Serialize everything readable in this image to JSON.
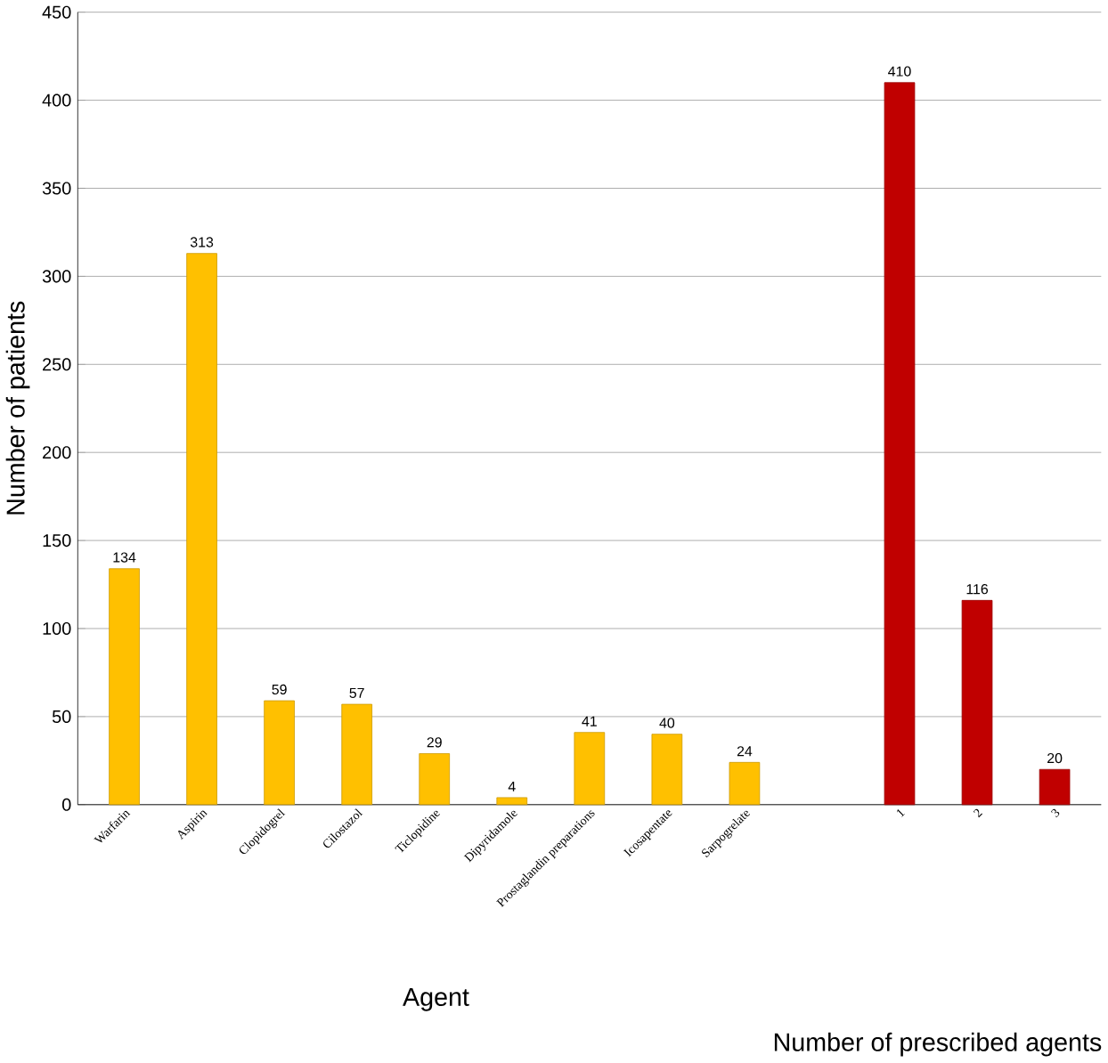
{
  "chart_data": {
    "type": "bar",
    "ylabel": "Number of patients",
    "xlabel": "Agent",
    "categories": [
      "Warfarin",
      "Aspirin",
      "Clopidogrel",
      "Cilostazol",
      "Ticlopidine",
      "Dipyridamole",
      "Prostaglandin preparations",
      "Icosapentate",
      "Sarpogrelate",
      null,
      "1",
      "2",
      "3"
    ],
    "series": [
      {
        "color": "#ffc000",
        "values": [
          134,
          313,
          59,
          57,
          29,
          4,
          41,
          40,
          24,
          null,
          null,
          null,
          null
        ]
      },
      {
        "color": "#c00000",
        "values": [
          null,
          null,
          null,
          null,
          null,
          null,
          null,
          null,
          null,
          null,
          410,
          116,
          20
        ]
      }
    ],
    "ylim": [
      0,
      450
    ],
    "yticks": [
      0,
      50,
      100,
      150,
      200,
      250,
      300,
      350,
      400,
      450
    ],
    "grid": "y",
    "data_labels": true,
    "annotations": [
      "Number of prescribed agents"
    ]
  }
}
